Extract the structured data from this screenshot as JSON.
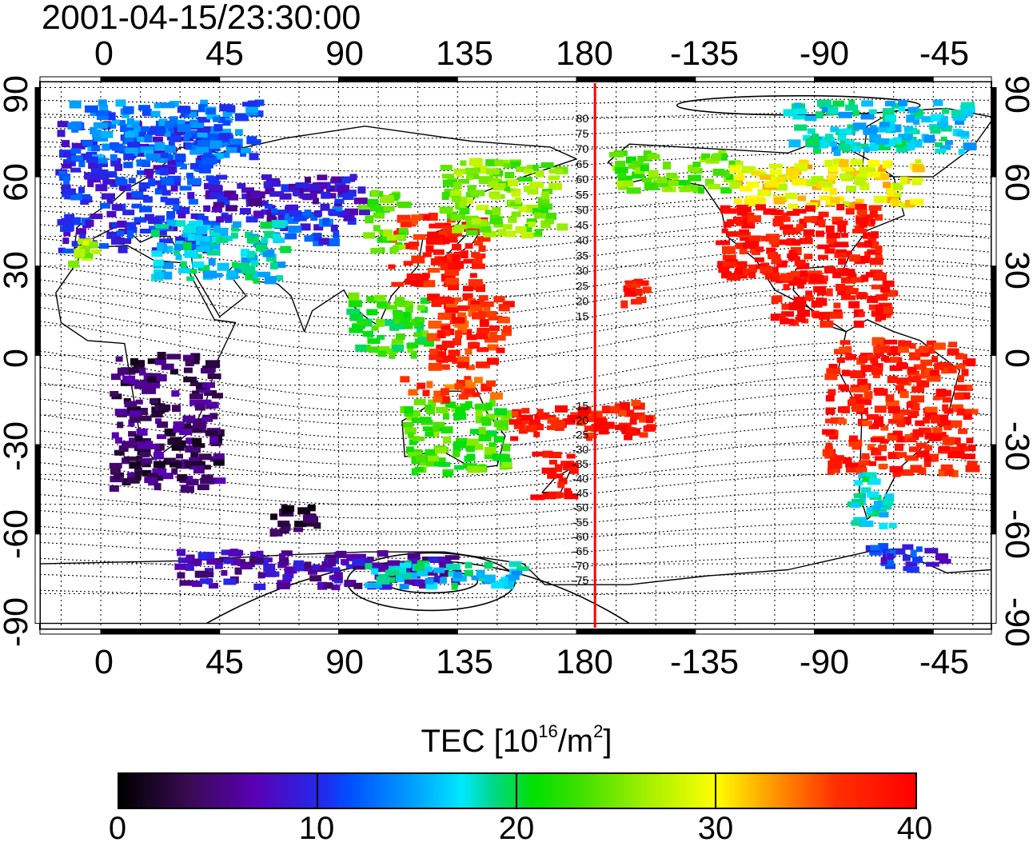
{
  "title": "2001-04-15/23:30:00",
  "x_axis": {
    "ticks": [
      "0",
      "45",
      "90",
      "135",
      "180",
      "-135",
      "-90",
      "-45"
    ],
    "tick_longitudes": [
      0,
      45,
      90,
      135,
      180,
      225,
      270,
      315
    ]
  },
  "y_axis": {
    "ticks": [
      "90",
      "60",
      "30",
      "0",
      "-30",
      "-60",
      "-90"
    ],
    "tick_latitudes": [
      90,
      60,
      30,
      0,
      -30,
      -60,
      -90
    ]
  },
  "lon_range": [
    -23,
    337
  ],
  "lat_range": [
    -92,
    92
  ],
  "grid": {
    "lon_step": 15,
    "lat_step": 10
  },
  "terminator_longitude": 187,
  "terminator_color": "#ff0000",
  "contour_labels": [
    "80",
    "75",
    "70",
    "65",
    "60",
    "55",
    "50",
    "45",
    "40",
    "35",
    "30",
    "25",
    "20",
    "15",
    "-15",
    "-20",
    "-25",
    "-30",
    "-35",
    "-40",
    "-45",
    "-50",
    "-55",
    "-60",
    "-65",
    "-70",
    "-75"
  ],
  "colorbar": {
    "title_prefix": "TEC  [10",
    "title_exp1": "16",
    "title_mid": "/m",
    "title_exp2": "2",
    "title_suffix": "]",
    "ticks": [
      "0",
      "10",
      "20",
      "30",
      "40"
    ],
    "tick_values": [
      0,
      10,
      20,
      30,
      40
    ],
    "min": 0,
    "max": 40
  },
  "tec_regions": [
    {
      "name": "europe",
      "lon": [
        -15,
        45
      ],
      "lat": [
        35,
        78
      ],
      "tec": 10
    },
    {
      "name": "scandinavia-north",
      "lon": [
        -10,
        60
      ],
      "lat": [
        65,
        85
      ],
      "tec": 13
    },
    {
      "name": "russia",
      "lon": [
        40,
        100
      ],
      "lat": [
        45,
        60
      ],
      "tec": 8
    },
    {
      "name": "central-asia",
      "lon": [
        65,
        90
      ],
      "lat": [
        38,
        50
      ],
      "tec": 11
    },
    {
      "name": "middle-east",
      "lon": [
        20,
        70
      ],
      "lat": [
        25,
        45
      ],
      "tec": 17
    },
    {
      "name": "iberia",
      "lon": [
        -12,
        0
      ],
      "lat": [
        30,
        40
      ],
      "tec": 27
    },
    {
      "name": "japan-china",
      "lon": [
        110,
        145
      ],
      "lat": [
        22,
        47
      ],
      "tec": 38
    },
    {
      "name": "east-asia-edge",
      "lon": [
        100,
        115
      ],
      "lat": [
        35,
        55
      ],
      "tec": 24
    },
    {
      "name": "philippines",
      "lon": [
        95,
        125
      ],
      "lat": [
        0,
        20
      ],
      "tec": 22
    },
    {
      "name": "pacific-nw",
      "lon": [
        130,
        175
      ],
      "lat": [
        40,
        65
      ],
      "tec": 25
    },
    {
      "name": "pacific-tropics",
      "lon": [
        125,
        155
      ],
      "lat": [
        -5,
        20
      ],
      "tec": 37
    },
    {
      "name": "australia",
      "lon": [
        115,
        155
      ],
      "lat": [
        -40,
        -15
      ],
      "tec": 23
    },
    {
      "name": "new-guinea",
      "lon": [
        115,
        150
      ],
      "lat": [
        -15,
        -8
      ],
      "tec": 36
    },
    {
      "name": "new-zealand",
      "lon": [
        165,
        180
      ],
      "lat": [
        -48,
        -33
      ],
      "tec": 39
    },
    {
      "name": "south-pacific",
      "lon": [
        155,
        210
      ],
      "lat": [
        -28,
        -15
      ],
      "tec": 38
    },
    {
      "name": "hawaii",
      "lon": [
        197,
        207
      ],
      "lat": [
        17,
        25
      ],
      "tec": 39
    },
    {
      "name": "alaska",
      "lon": [
        195,
        240
      ],
      "lat": [
        55,
        68
      ],
      "tec": 24
    },
    {
      "name": "canada",
      "lon": [
        240,
        310
      ],
      "lat": [
        50,
        65
      ],
      "tec": 30
    },
    {
      "name": "usa",
      "lon": [
        235,
        295
      ],
      "lat": [
        25,
        50
      ],
      "tec": 39
    },
    {
      "name": "mexico-caribbean",
      "lon": [
        255,
        300
      ],
      "lat": [
        10,
        28
      ],
      "tec": 39
    },
    {
      "name": "greenland-arctic",
      "lon": [
        260,
        330
      ],
      "lat": [
        68,
        85
      ],
      "tec": 17
    },
    {
      "name": "south-america",
      "lon": [
        275,
        330
      ],
      "lat": [
        -40,
        5
      ],
      "tec": 38
    },
    {
      "name": "patagonia",
      "lon": [
        285,
        300
      ],
      "lat": [
        -58,
        -40
      ],
      "tec": 18
    },
    {
      "name": "antarctic-peninsula",
      "lon": [
        290,
        320
      ],
      "lat": [
        -72,
        -64
      ],
      "tec": 10
    },
    {
      "name": "africa-sparse",
      "lon": [
        5,
        45
      ],
      "lat": [
        -45,
        0
      ],
      "tec": 4
    },
    {
      "name": "indian-ocean-south",
      "lon": [
        65,
        85
      ],
      "lat": [
        -60,
        -50
      ],
      "tec": 3
    },
    {
      "name": "antarctica-coast",
      "lon": [
        30,
        135
      ],
      "lat": [
        -78,
        -66
      ],
      "tec": 7
    },
    {
      "name": "antarctica-ross",
      "lon": [
        100,
        160
      ],
      "lat": [
        -78,
        -70
      ],
      "tec": 17
    }
  ]
}
